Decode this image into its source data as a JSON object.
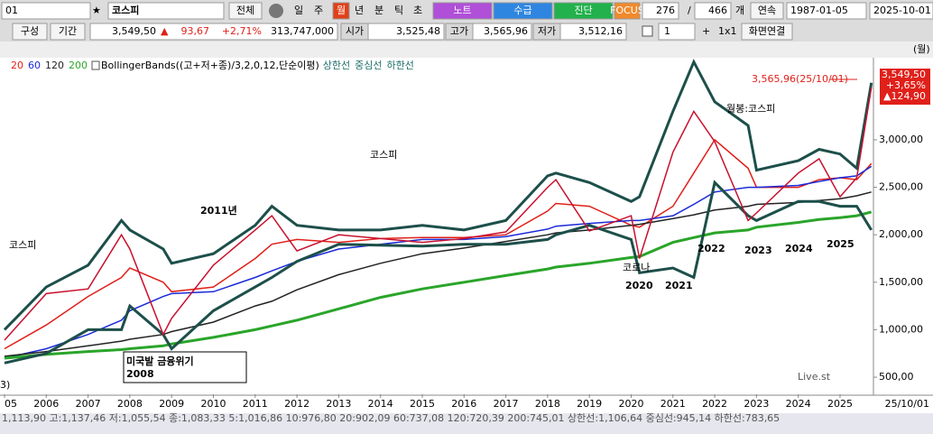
{
  "toolbar": {
    "code": "01",
    "star": "★",
    "name": "코스피",
    "all": "전체",
    "periods": [
      "일",
      "주",
      "월",
      "년",
      "분",
      "틱",
      "초"
    ],
    "tabs": [
      "노트",
      "수급",
      "진단",
      "FOCUS"
    ],
    "count": "276",
    "sep": "/",
    "total": "466",
    "unit": "개",
    "mode": "연속",
    "start": "1987-01-05",
    "end": "2025-10-01"
  },
  "quote": {
    "buttons": [
      "구성",
      "기간"
    ],
    "price": "3,549,50",
    "arrow": "▲",
    "change": "93,67",
    "pct": "+2,71%",
    "volume": "313,747,000",
    "open_label": "시가",
    "open": "3,525,48",
    "high_label": "고가",
    "high": "3,565,96",
    "low_label": "저가",
    "low": "3,512,16",
    "layout": "1",
    "plus": "+",
    "grid": "1x1",
    "link": "화면연결",
    "period": "(월)"
  },
  "chart_data": {
    "type": "line",
    "legend_title": "BollingerBands((고+저+종)/3,2,0,12,단순이평)",
    "middle_band": "중심선",
    "x": [
      2005,
      2006,
      2007,
      2007.8,
      2008,
      2008.8,
      2009,
      2010,
      2011,
      2011.4,
      2012,
      2013,
      2014,
      2015,
      2016,
      2017,
      2018,
      2018.2,
      2019,
      2020,
      2020.2,
      2021,
      2021.5,
      2022,
      2022.8,
      2023,
      2024,
      2024.5,
      2025,
      2025.4,
      2025.75
    ],
    "values": [
      890,
      1380,
      1430,
      2000,
      1850,
      950,
      1120,
      1680,
      2050,
      2200,
      1830,
      2000,
      1960,
      1920,
      1960,
      2030,
      2500,
      2580,
      2040,
      2200,
      1750,
      2870,
      3300,
      2980,
      2150,
      2230,
      2650,
      2800,
      2400,
      2600,
      3550
    ],
    "color": "#c8102e",
    "series": [
      {
        "name": "20",
        "color": "#e0201a",
        "values": [
          800,
          1050,
          1350,
          1550,
          1650,
          1500,
          1400,
          1450,
          1750,
          1900,
          1950,
          1920,
          1960,
          1970,
          1970,
          2000,
          2250,
          2330,
          2300,
          2100,
          2080,
          2300,
          2650,
          3000,
          2700,
          2500,
          2500,
          2580,
          2600,
          2580,
          2750
        ]
      },
      {
        "name": "60",
        "color": "#1a2ad8",
        "values": [
          700,
          800,
          950,
          1100,
          1200,
          1350,
          1380,
          1400,
          1550,
          1620,
          1720,
          1850,
          1900,
          1950,
          1950,
          1980,
          2060,
          2090,
          2120,
          2150,
          2150,
          2200,
          2320,
          2450,
          2500,
          2500,
          2520,
          2560,
          2600,
          2620,
          2720
        ]
      },
      {
        "name": "120",
        "color": "#222222",
        "values": [
          720,
          770,
          830,
          880,
          900,
          950,
          980,
          1080,
          1250,
          1300,
          1420,
          1580,
          1700,
          1800,
          1860,
          1930,
          2000,
          2020,
          2050,
          2100,
          2110,
          2170,
          2210,
          2260,
          2300,
          2320,
          2340,
          2360,
          2380,
          2410,
          2450
        ]
      },
      {
        "name": "200",
        "color": "#2aa52a",
        "values": [
          700,
          740,
          770,
          790,
          800,
          830,
          850,
          920,
          1000,
          1040,
          1100,
          1220,
          1340,
          1430,
          1500,
          1570,
          1640,
          1660,
          1700,
          1760,
          1770,
          1920,
          1970,
          2020,
          2050,
          2080,
          2130,
          2160,
          2180,
          2200,
          2240
        ]
      },
      {
        "name": "상한선",
        "color": "#1d4f4a",
        "values": [
          1000,
          1450,
          1680,
          2150,
          2050,
          1850,
          1700,
          1800,
          2100,
          2300,
          2100,
          2050,
          2050,
          2100,
          2050,
          2150,
          2620,
          2650,
          2550,
          2350,
          2400,
          3300,
          3820,
          3400,
          3150,
          2680,
          2780,
          2900,
          2850,
          2700,
          3600
        ]
      },
      {
        "name": "하한선",
        "color": "#1d4f4a",
        "values": [
          650,
          750,
          1000,
          1000,
          1250,
          950,
          800,
          1200,
          1450,
          1550,
          1720,
          1900,
          1890,
          1880,
          1900,
          1900,
          1950,
          2000,
          2100,
          1950,
          1600,
          1650,
          1550,
          2550,
          2200,
          2150,
          2350,
          2350,
          2300,
          2300,
          2050
        ]
      }
    ],
    "xlim": [
      2005,
      2025.8
    ],
    "ylim": [
      320,
      3845
    ],
    "xticks": [
      {
        "value": 2005,
        "label": "05"
      },
      2006,
      2007,
      2008,
      2009,
      2010,
      2011,
      2012,
      2013,
      2014,
      2015,
      2016,
      2017,
      2018,
      2019,
      2020,
      2021,
      2022,
      2023,
      2024,
      2025
    ],
    "yticks": [
      {
        "value": 500,
        "label": "500,00"
      },
      {
        "value": 1000,
        "label": "1,000,00"
      },
      {
        "value": 1500,
        "label": "1,500,00"
      },
      {
        "value": 2000,
        "label": "2,000,00"
      },
      {
        "value": 2500,
        "label": "2,500,00"
      },
      {
        "value": 3000,
        "label": "3,000,00"
      }
    ],
    "x_end_label": "25/10/01",
    "last_tag": [
      "3,549,50",
      "+3,65%",
      "▲124,90"
    ],
    "high_marker": "3,565,96(25/10/01)",
    "annotations": [
      "코스피",
      "코스피",
      "2011년",
      "미국발 금융위기",
      "2008",
      "코로나",
      "2020",
      "2021",
      "2022",
      "2023",
      "2024",
      "2025",
      "월봉:코스피",
      "Live.st",
      "3)"
    ]
  },
  "status": "1,113,90 고:1,137,46 저:1,055,54 종:1,083,33 5:1,016,86 10:976,80 20:902,09 60:737,08 120:720,39 200:745,01 상한선:1,106,64 중심선:945,14 하한선:783,65"
}
